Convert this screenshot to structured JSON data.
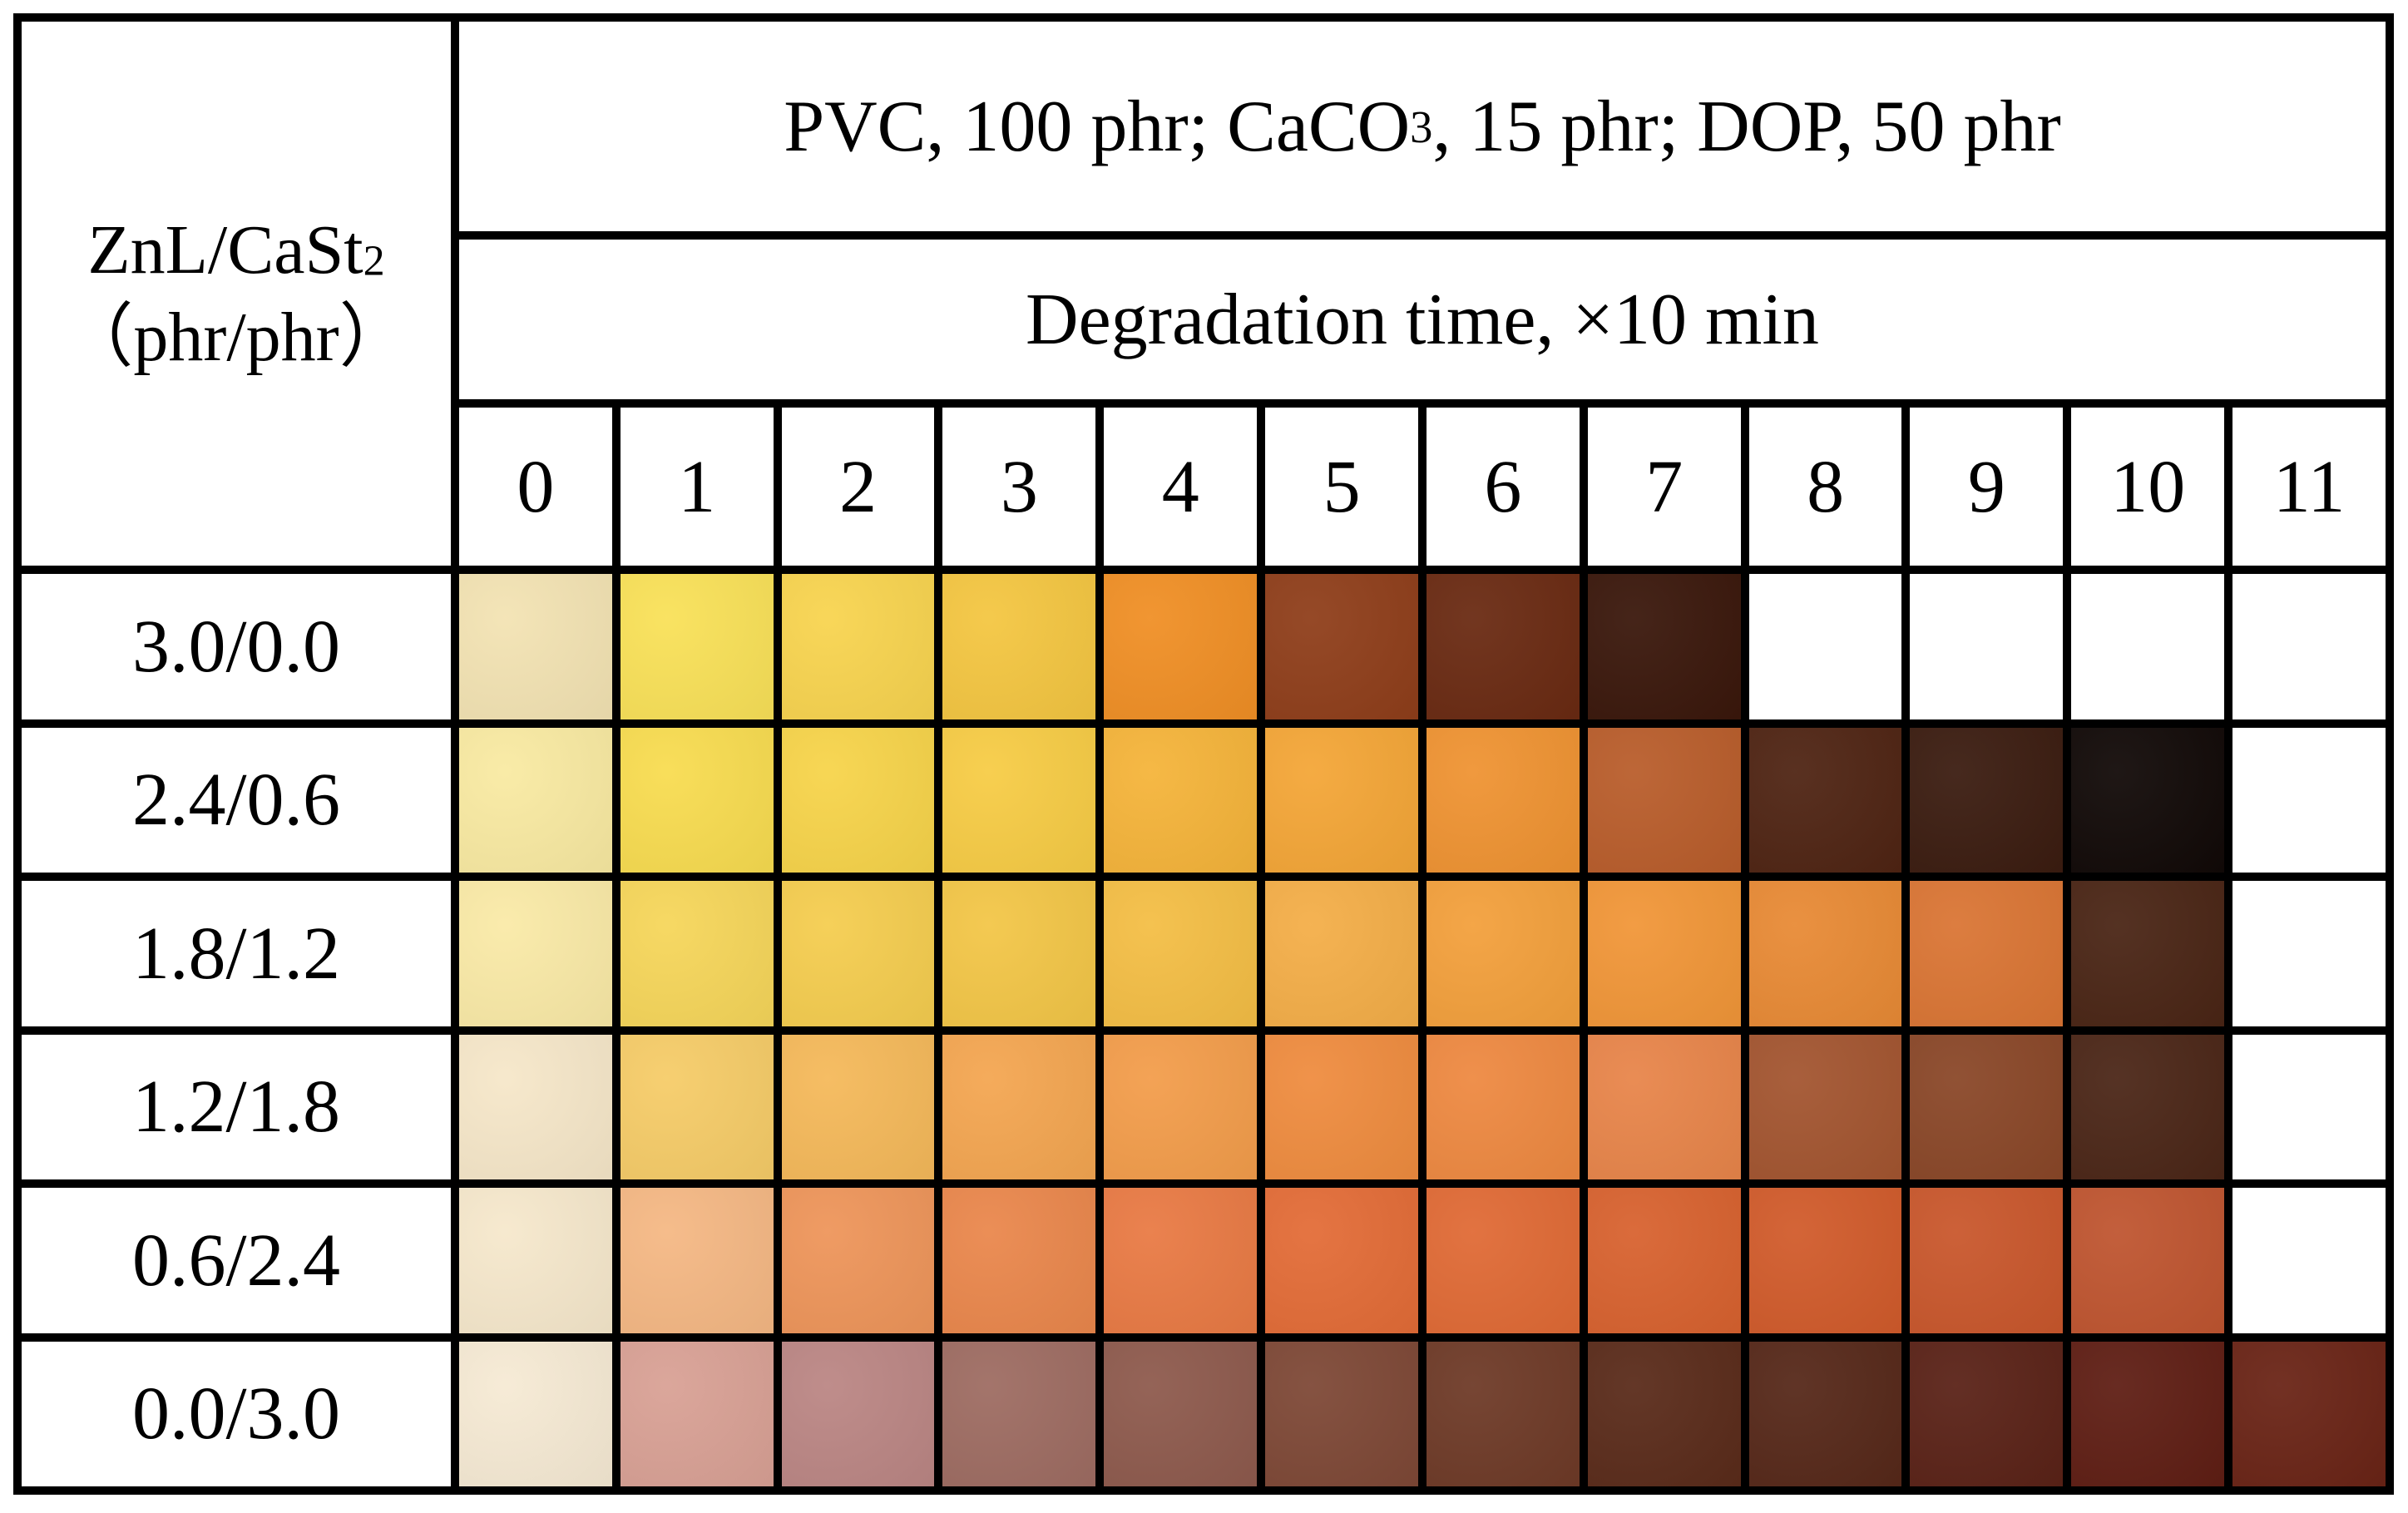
{
  "corner": {
    "line1_main": "ZnL/CaSt",
    "line1_sub": "2",
    "line2": "（phr/phr）"
  },
  "formulation": {
    "prefix": "PVC, 100 phr; CaCO",
    "sub": "3",
    "suffix": ", 15 phr; DOP, 50 phr"
  },
  "axis_title": "Degradation time, ×10 min",
  "time_labels": [
    "0",
    "1",
    "2",
    "3",
    "4",
    "5",
    "6",
    "7",
    "8",
    "9",
    "10",
    "11"
  ],
  "rows": [
    {
      "label": "3.0/0.0",
      "colors": [
        "#f3e3b3",
        "#f9e158",
        "#f8d44f",
        "#f4c641",
        "#f08f25",
        "#8f3e1a",
        "#6a2a12",
        "#3a170b",
        null,
        null,
        null,
        null
      ]
    },
    {
      "label": "2.4/0.6",
      "colors": [
        "#f9eaa2",
        "#f8dc50",
        "#f7d44a",
        "#f7cc45",
        "#f5b43a",
        "#f4a637",
        "#ef9332",
        "#b95d2b",
        "#4f2413",
        "#3b1c10",
        "#110907",
        null
      ]
    },
    {
      "label": "1.8/1.2",
      "colors": [
        "#faeaa7",
        "#f6d65a",
        "#f5cd4f",
        "#f3c647",
        "#f4be45",
        "#f4ae48",
        "#f3a03c",
        "#f19638",
        "#e88a35",
        "#da7534",
        "#4a2515",
        null
      ]
    },
    {
      "label": "1.2/1.8",
      "colors": [
        "#f6e7c9",
        "#f6cc68",
        "#f5b95a",
        "#f4a651",
        "#f39d4b",
        "#ef8c3f",
        "#ee8941",
        "#e8854a",
        "#a35530",
        "#8a4728",
        "#4b2617",
        null
      ]
    },
    {
      "label": "0.6/2.4",
      "colors": [
        "#f6e8cc",
        "#f5b884",
        "#ee955a",
        "#ea874c",
        "#e97a44",
        "#e36c37",
        "#e06a35",
        "#d8622f",
        "#d15b2b",
        "#c9572c",
        "#bf5530",
        null
      ]
    },
    {
      "label": "0.0/3.0",
      "colors": [
        "#f6ead4",
        "#d9a195",
        "#bb8684",
        "#9e6c62",
        "#8e5a4d",
        "#7e4836",
        "#6e3a27",
        "#5a2b1a",
        "#562819",
        "#5a2217",
        "#5f1e14",
        "#6a2416"
      ]
    }
  ]
}
